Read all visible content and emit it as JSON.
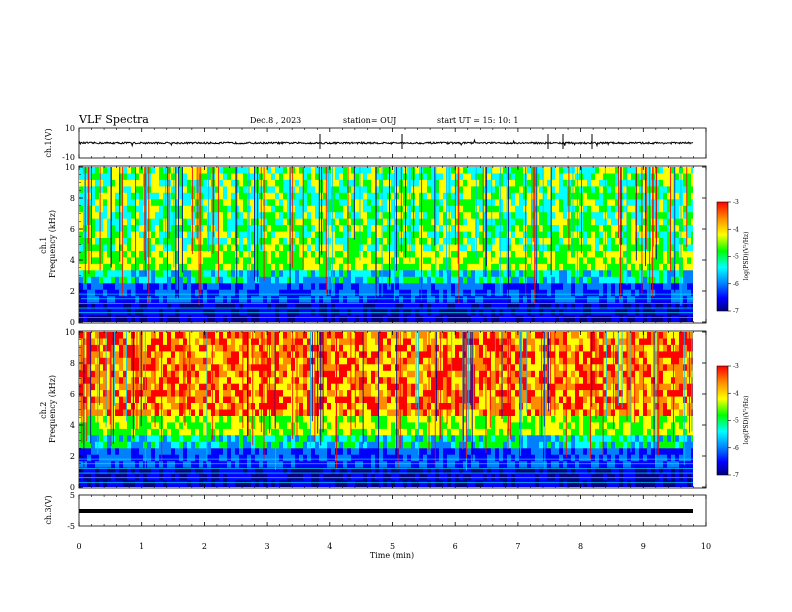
{
  "header": {
    "title": "VLF Spectra",
    "date": "Dec.8 , 2023",
    "station": "station= OUJ",
    "start": "start  UT =   15: 10: 1"
  },
  "colorbar": {
    "label": "log(PSD)(V²/Hz)",
    "ticks": [
      "-3",
      "-4",
      "-5",
      "-6",
      "-7"
    ],
    "colors": [
      "#ff0000",
      "#ff8c00",
      "#ffff00",
      "#00ff00",
      "#00ffff",
      "#0080ff",
      "#0000ff",
      "#000080"
    ]
  },
  "chart_data": [
    {
      "type": "line",
      "panel": "ch1-waveform",
      "ylabel": "ch.1(V)",
      "ylim": [
        -10,
        10
      ],
      "yticks": [
        "10",
        "-10"
      ],
      "x": [
        0,
        1,
        2,
        3,
        4,
        5,
        6,
        7,
        8,
        9,
        9.8
      ],
      "values": [
        0,
        0,
        0,
        0,
        0,
        0,
        0,
        0,
        0,
        0,
        0
      ]
    },
    {
      "type": "heatmap",
      "panel": "ch1-spectrogram",
      "ylabel": "ch.1 Frequency (kHz)",
      "ylim": [
        0,
        10
      ],
      "yticks": [
        "0",
        "2",
        "4",
        "6",
        "8",
        "10"
      ],
      "colorbar_range": [
        -7,
        -3
      ]
    },
    {
      "type": "heatmap",
      "panel": "ch2-spectrogram",
      "ylabel": "ch.2 Frequency (kHz)",
      "ylim": [
        0,
        10
      ],
      "yticks": [
        "0",
        "2",
        "4",
        "6",
        "8",
        "10"
      ],
      "colorbar_range": [
        -7,
        -3
      ]
    },
    {
      "type": "line",
      "panel": "ch3-waveform",
      "ylabel": "ch.3(V)",
      "ylim": [
        -5,
        5
      ],
      "yticks": [
        "5",
        "0",
        "-5"
      ],
      "x": [
        0,
        9.8
      ],
      "values": [
        0,
        0
      ]
    }
  ],
  "xaxis": {
    "label": "Time  (min)",
    "range": [
      0,
      10
    ],
    "ticks": [
      "0",
      "1",
      "2",
      "3",
      "4",
      "5",
      "6",
      "7",
      "8",
      "9",
      "10"
    ]
  }
}
